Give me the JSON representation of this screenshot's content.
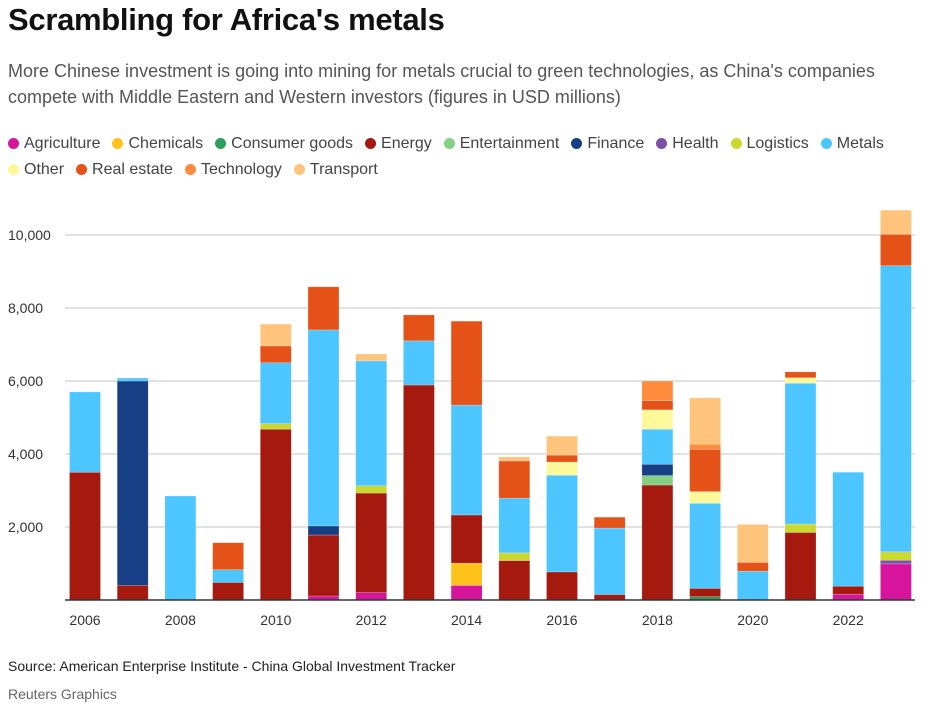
{
  "chart_data": {
    "type": "bar",
    "stacked": true,
    "title": "Scrambling for Africa's metals",
    "subtitle": "More Chinese investment is going into mining for metals crucial to green technologies, as China's companies compete with Middle Eastern and Western investors (figures in USD millions)",
    "xlabel": "",
    "ylabel": "",
    "ylim": [
      0,
      11000
    ],
    "yticks": [
      2000,
      4000,
      6000,
      8000,
      10000
    ],
    "ytick_labels": [
      "2,000",
      "4,000",
      "6,000",
      "8,000",
      "10,000"
    ],
    "xtick_labels": [
      "2006",
      "2008",
      "2010",
      "2012",
      "2014",
      "2016",
      "2018",
      "2020",
      "2022"
    ],
    "grid": true,
    "legend_position": "top",
    "categories": [
      "2006",
      "2007",
      "2008",
      "2009",
      "2010",
      "2011",
      "2012",
      "2013",
      "2014",
      "2015",
      "2016",
      "2017",
      "2018",
      "2019",
      "2020",
      "2021",
      "2022",
      "2023"
    ],
    "series": [
      {
        "name": "Agriculture",
        "color": "#d6149c",
        "values": [
          0,
          0,
          0,
          0,
          0,
          110,
          200,
          0,
          400,
          0,
          0,
          0,
          0,
          0,
          0,
          0,
          160,
          990
        ]
      },
      {
        "name": "Chemicals",
        "color": "#ffc21a",
        "values": [
          0,
          0,
          0,
          0,
          0,
          0,
          0,
          0,
          610,
          0,
          0,
          0,
          0,
          0,
          0,
          0,
          0,
          0
        ]
      },
      {
        "name": "Consumer goods",
        "color": "#2aa05a",
        "values": [
          0,
          0,
          0,
          0,
          0,
          0,
          0,
          0,
          0,
          0,
          0,
          0,
          0,
          90,
          0,
          0,
          0,
          0
        ]
      },
      {
        "name": "Energy",
        "color": "#a5190e",
        "values": [
          3500,
          400,
          0,
          480,
          4680,
          1670,
          2730,
          5890,
          1320,
          1080,
          770,
          150,
          3150,
          230,
          0,
          1850,
          220,
          0
        ]
      },
      {
        "name": "Entertainment",
        "color": "#84d184",
        "values": [
          0,
          0,
          0,
          0,
          0,
          0,
          0,
          0,
          0,
          0,
          0,
          0,
          260,
          0,
          0,
          0,
          0,
          0
        ]
      },
      {
        "name": "Finance",
        "color": "#163f85",
        "values": [
          0,
          5600,
          0,
          0,
          0,
          250,
          0,
          0,
          0,
          0,
          0,
          0,
          310,
          0,
          0,
          0,
          0,
          0
        ]
      },
      {
        "name": "Health",
        "color": "#7b52a8",
        "values": [
          0,
          0,
          0,
          0,
          0,
          0,
          0,
          0,
          0,
          0,
          0,
          0,
          0,
          0,
          0,
          0,
          0,
          100
        ]
      },
      {
        "name": "Logistics",
        "color": "#c9d92e",
        "values": [
          0,
          0,
          0,
          0,
          150,
          0,
          200,
          0,
          0,
          210,
          0,
          0,
          0,
          0,
          0,
          230,
          0,
          230
        ]
      },
      {
        "name": "Metals",
        "color": "#4dc6ff",
        "values": [
          2200,
          80,
          2850,
          350,
          1670,
          5370,
          3420,
          1210,
          3010,
          1500,
          2650,
          1820,
          960,
          2330,
          790,
          3860,
          3120,
          7840
        ]
      },
      {
        "name": "Other",
        "color": "#fdf99a",
        "values": [
          0,
          0,
          0,
          0,
          0,
          0,
          0,
          0,
          0,
          0,
          360,
          0,
          530,
          320,
          0,
          150,
          0,
          0
        ]
      },
      {
        "name": "Real estate",
        "color": "#e55217",
        "values": [
          0,
          0,
          0,
          740,
          460,
          1180,
          0,
          710,
          2300,
          1020,
          190,
          300,
          250,
          1160,
          240,
          160,
          0,
          860
        ]
      },
      {
        "name": "Technology",
        "color": "#ff8b3d",
        "values": [
          0,
          0,
          0,
          0,
          0,
          0,
          0,
          0,
          0,
          0,
          0,
          0,
          540,
          140,
          0,
          0,
          0,
          0
        ]
      },
      {
        "name": "Transport",
        "color": "#ffc47c",
        "values": [
          0,
          0,
          0,
          0,
          600,
          0,
          190,
          0,
          0,
          110,
          520,
          0,
          0,
          1270,
          1040,
          0,
          0,
          660
        ]
      }
    ]
  },
  "footer": {
    "source": "Source: American Enterprise Institute - China Global Investment Tracker",
    "credit": "Reuters Graphics"
  }
}
